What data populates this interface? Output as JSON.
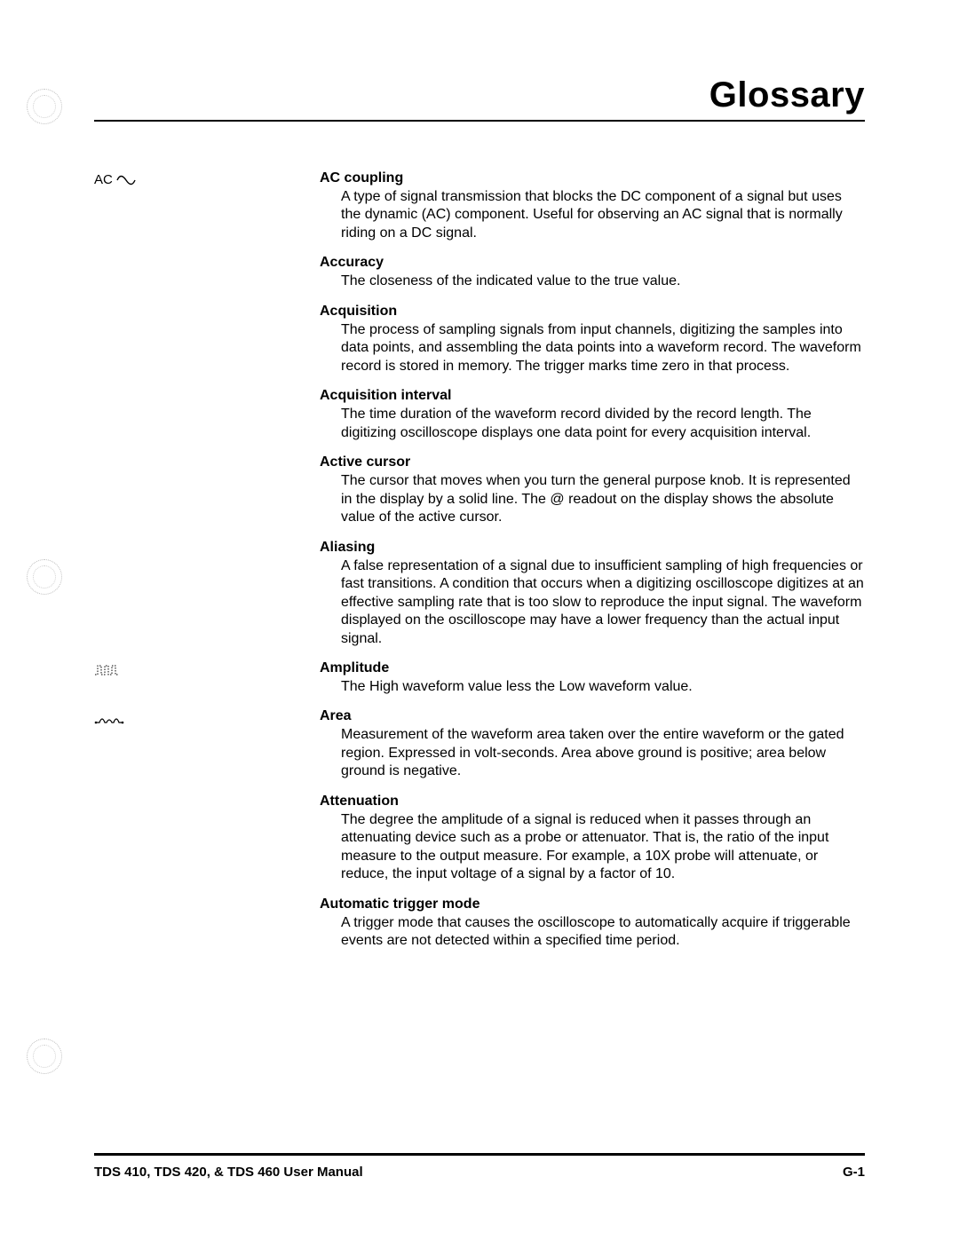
{
  "title": "Glossary",
  "footer": {
    "left": "TDS 410, TDS 420, & TDS 460 User Manual",
    "right": "G-1"
  },
  "colors": {
    "text": "#000000",
    "background": "#ffffff",
    "rule": "#000000",
    "punch": "#bdbdbd"
  },
  "typography": {
    "title_fontsize_pt": 30,
    "term_fontsize_pt": 12,
    "def_fontsize_pt": 12,
    "footer_fontsize_pt": 11,
    "font_family": "Helvetica"
  },
  "entries": [
    {
      "margin_label": "AC",
      "margin_icon": "sine-wave",
      "term": "AC coupling",
      "definition": "A type of signal transmission that blocks the DC component of a signal but uses the dynamic (AC) component. Useful for observing an AC signal that is normally riding on a DC signal."
    },
    {
      "margin_label": "",
      "margin_icon": "",
      "term": "Accuracy",
      "definition": "The closeness of the indicated value to the true value."
    },
    {
      "margin_label": "",
      "margin_icon": "",
      "term": "Acquisition",
      "definition": "The process of sampling signals from input channels, digitizing the samples into data points, and assembling the data points into a waveform record. The waveform record is stored in memory. The trigger marks time zero in that process."
    },
    {
      "margin_label": "",
      "margin_icon": "",
      "term": "Acquisition interval",
      "definition": "The time duration of the waveform record divided by the record length. The digitizing oscilloscope displays one data point for every acquisition interval."
    },
    {
      "margin_label": "",
      "margin_icon": "",
      "term": "Active cursor",
      "definition": "The cursor that moves when you turn the general purpose knob. It is represented in the display by a solid line. The @ readout on the display shows the absolute value of the active cursor."
    },
    {
      "margin_label": "",
      "margin_icon": "",
      "term": "Aliasing",
      "definition": "A false representation of a signal due to insufficient sampling of high frequencies or fast transitions. A condition that occurs when a digitizing oscilloscope digitizes at an effective sampling rate that is too slow to reproduce the input signal. The waveform displayed on the oscilloscope may have a lower frequency than the actual input signal."
    },
    {
      "margin_label": "",
      "margin_icon": "amplitude-pulses",
      "term": "Amplitude",
      "definition": "The High waveform value less the Low waveform value."
    },
    {
      "margin_label": "",
      "margin_icon": "area-bumps",
      "term": "Area",
      "definition": "Measurement of the waveform area taken over the entire waveform or the gated region. Expressed in volt-seconds. Area above ground is positive; area below ground is negative."
    },
    {
      "margin_label": "",
      "margin_icon": "",
      "term": "Attenuation",
      "definition": "The degree the amplitude of a signal is reduced when it passes through an attenuating device such as a probe or attenuator. That is, the ratio of the input measure to the output measure. For example, a 10X probe will attenuate, or reduce, the input voltage of a signal by a factor of 10."
    },
    {
      "margin_label": "",
      "margin_icon": "",
      "term": "Automatic trigger mode",
      "definition": "A trigger mode that causes the oscilloscope to automatically acquire if triggerable events are not detected within a specified time period."
    }
  ]
}
